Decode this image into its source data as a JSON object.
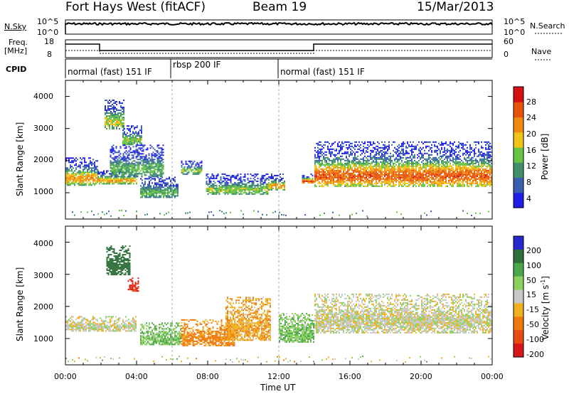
{
  "header": {
    "site": "Fort Hays West (fitACF)",
    "beam": "Beam 19",
    "date": "15/Mar/2013"
  },
  "labels": {
    "nsky": "N.Sky",
    "nsky_hi": "10^5",
    "nsky_lo": "10^0",
    "nsearch": "N.Search",
    "nsearch_hi": "10^5",
    "nsearch_lo": "10^0",
    "freq_line1": "Freq.",
    "freq_line2": "[MHz]",
    "freq_hi": "18",
    "freq_lo": "8",
    "nave": "Nave",
    "nave_hi": "60",
    "nave_lo": "0",
    "cpid": "CPID"
  },
  "modes": [
    "normal (fast) 151 IF",
    "rbsp 200 IF",
    "normal (fast) 151 IF"
  ],
  "axes": {
    "ylabel": "Slant Range [km]",
    "xlabel": "Time UT",
    "yticks": [
      "1000",
      "2000",
      "3000",
      "4000"
    ],
    "xticks": [
      "00:00",
      "04:00",
      "08:00",
      "12:00",
      "16:00",
      "20:00",
      "00:00"
    ]
  },
  "colorbars": {
    "power": {
      "label": "Power [dB]",
      "ticks": [
        "4",
        "8",
        "12",
        "16",
        "20",
        "24",
        "28"
      ],
      "colors": [
        "#1e1ee6",
        "#3a5fb0",
        "#3f8f6a",
        "#66c445",
        "#f0c418",
        "#f08a10",
        "#e8520c",
        "#d61010"
      ]
    },
    "velocity": {
      "label_main": "Velocity [m s",
      "label_sup": "-1",
      "label_end": "]",
      "ticks": [
        "200",
        "100",
        "50",
        "15",
        "-15",
        "-50",
        "-100",
        "-200"
      ],
      "colors": [
        "#2828d0",
        "#2f6f3a",
        "#4aa84a",
        "#8cd060",
        "#c8c8c8",
        "#f0b020",
        "#f07a10",
        "#e84a10",
        "#d81818"
      ]
    }
  },
  "chart_data": [
    {
      "type": "heatmap",
      "title": "Power",
      "xlabel": "Time UT",
      "ylabel": "Slant Range [km]",
      "xlim": [
        0,
        24
      ],
      "ylim": [
        180,
        4500
      ],
      "colorbar": "Power [dB]",
      "colorbar_range": [
        0,
        30
      ],
      "features": [
        {
          "t_start": 0.0,
          "t_end": 1.8,
          "range_low": 1250,
          "range_high": 2100,
          "peak_db": 20
        },
        {
          "t_start": 1.8,
          "t_end": 4.0,
          "range_low": 1300,
          "range_high": 1700,
          "peak_db": 20
        },
        {
          "t_start": 2.2,
          "t_end": 3.3,
          "range_low": 3000,
          "range_high": 3900,
          "peak_db": 16
        },
        {
          "t_start": 3.2,
          "t_end": 4.3,
          "range_low": 2500,
          "range_high": 3100,
          "peak_db": 14
        },
        {
          "t_start": 2.5,
          "t_end": 5.5,
          "range_low": 1500,
          "range_high": 2500,
          "peak_db": 12
        },
        {
          "t_start": 4.2,
          "t_end": 6.3,
          "range_low": 850,
          "range_high": 1500,
          "peak_db": 12
        },
        {
          "t_start": 6.5,
          "t_end": 7.7,
          "range_low": 1600,
          "range_high": 2000,
          "peak_db": 14
        },
        {
          "t_start": 7.9,
          "t_end": 11.4,
          "range_low": 950,
          "range_high": 1600,
          "peak_db": 14
        },
        {
          "t_start": 11.4,
          "t_end": 12.3,
          "range_low": 1100,
          "range_high": 1600,
          "peak_db": 20
        },
        {
          "t_start": 13.3,
          "t_end": 14.0,
          "range_low": 1300,
          "range_high": 1600,
          "peak_db": 26
        },
        {
          "t_start": 14.0,
          "t_end": 24.0,
          "range_low": 1200,
          "range_high": 2600,
          "peak_db": 24
        }
      ]
    },
    {
      "type": "heatmap",
      "title": "Velocity",
      "xlabel": "Time UT",
      "ylabel": "Slant Range [km]",
      "xlim": [
        0,
        24
      ],
      "ylim": [
        180,
        4500
      ],
      "colorbar": "Velocity [m s-1]",
      "colorbar_range": [
        -250,
        250
      ],
      "features": [
        {
          "t_start": 0.0,
          "t_end": 4.0,
          "range_low": 1250,
          "range_high": 1700,
          "velocity": 0
        },
        {
          "t_start": 2.3,
          "t_end": 3.6,
          "range_low": 3000,
          "range_high": 3900,
          "velocity": 150
        },
        {
          "t_start": 3.5,
          "t_end": 4.1,
          "range_low": 2500,
          "range_high": 2900,
          "velocity": -200
        },
        {
          "t_start": 4.2,
          "t_end": 6.5,
          "range_low": 800,
          "range_high": 1500,
          "velocity": 40
        },
        {
          "t_start": 6.5,
          "t_end": 9.5,
          "range_low": 800,
          "range_high": 1600,
          "velocity": -60
        },
        {
          "t_start": 9.0,
          "t_end": 11.5,
          "range_low": 950,
          "range_high": 2300,
          "velocity": -40
        },
        {
          "t_start": 12.0,
          "t_end": 14.0,
          "range_low": 900,
          "range_high": 1800,
          "velocity": 40
        },
        {
          "t_start": 14.0,
          "t_end": 24.0,
          "range_low": 1200,
          "range_high": 2400,
          "velocity": 0
        }
      ]
    }
  ]
}
